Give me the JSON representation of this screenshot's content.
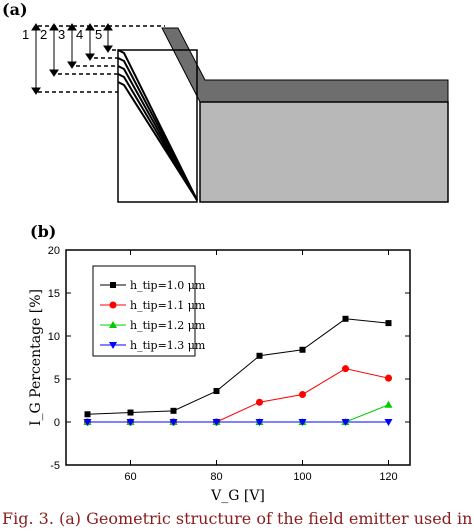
{
  "figure": {
    "panel_a_label": "(a)",
    "panel_b_label": "(b)",
    "caption": "Fig. 3. (a) Geometric structure of the field emitter used in the simula"
  },
  "diagram": {
    "markers": [
      "1",
      "2",
      "3",
      "4",
      "5"
    ]
  },
  "chart_data": {
    "type": "line",
    "xlabel": "V_G [V]",
    "ylabel": "I_G Percentage [%]",
    "xlim": [
      45,
      125
    ],
    "ylim": [
      -5,
      20
    ],
    "xticks": [
      60,
      80,
      100,
      120
    ],
    "yticks": [
      -5,
      0,
      5,
      10,
      15,
      20
    ],
    "grid": false,
    "legend_position": "top-left",
    "x": [
      50,
      60,
      70,
      80,
      90,
      100,
      110,
      120
    ],
    "series": [
      {
        "name": "h_tip=1.0 μm",
        "marker": "square",
        "color": "#000000",
        "values": [
          0.9,
          1.1,
          1.3,
          3.6,
          7.7,
          8.4,
          12.0,
          11.5
        ]
      },
      {
        "name": "h_tip=1.1 μm",
        "marker": "circle",
        "color": "#ff0000",
        "values": [
          0,
          0,
          0,
          0,
          2.3,
          3.2,
          6.2,
          5.1
        ]
      },
      {
        "name": "h_tip=1.2 μm",
        "marker": "triangle-up",
        "color": "#00cc00",
        "values": [
          0,
          0,
          0,
          0,
          0,
          0,
          0,
          2.0
        ]
      },
      {
        "name": "h_tip=1.3 μm",
        "marker": "triangle-down",
        "color": "#0000ff",
        "values": [
          0,
          0,
          0,
          0,
          0,
          0,
          0,
          0
        ]
      }
    ]
  }
}
